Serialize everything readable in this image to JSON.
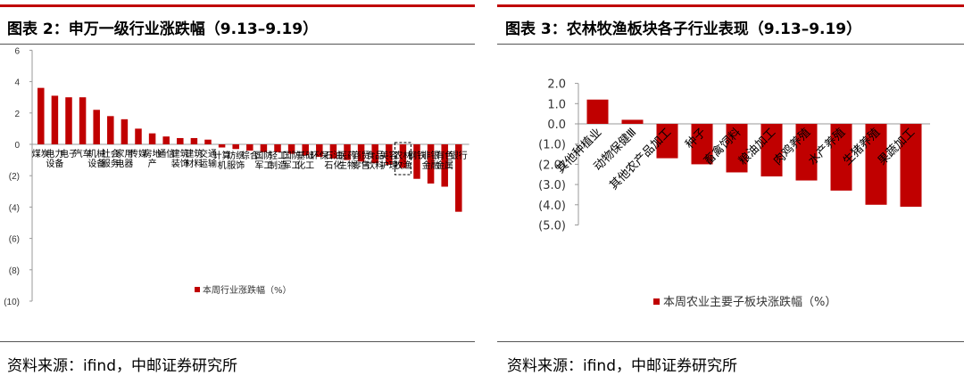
{
  "left_panel": {
    "title": "图表 2：申万一级行业涨跌幅（9.13–9.19）",
    "source": "资料来源：ifind，中邮证券研究所"
  },
  "right_panel": {
    "title": "图表 3：农林牧渔板块各子行业表现（9.13–9.19）",
    "source": "资料来源：ifind，中邮证券研究所"
  },
  "colors": {
    "bar": "#c00000",
    "border": "#8b0000",
    "axis": "#999999",
    "text": "#000000"
  },
  "chart_data": [
    {
      "type": "bar",
      "title": "",
      "ylim": [
        -10,
        6
      ],
      "y_ticks": [
        "6",
        "4",
        "2",
        "0",
        "(2)",
        "(4)",
        "(6)",
        "(8)",
        "(10)"
      ],
      "legend": "本周行业涨跌幅（%）",
      "legend_position": "bottom",
      "highlight_category": "农林牧渔",
      "categories": [
        "煤炭",
        "电力设备",
        "电子",
        "汽车",
        "机械设备",
        "社会服务",
        "家用电器",
        "传媒",
        "房地产",
        "通信",
        "建筑装饰",
        "建筑材料",
        "交通运输",
        "计算机",
        "纺织服饰",
        "综合",
        "国防军工",
        "轻工制造",
        "国防军工",
        "基础化工",
        "环保",
        "石油石化",
        "医药生物",
        "商贸零售",
        "食品饮料",
        "美容护理",
        "农林牧渔",
        "钢铁",
        "非银金融",
        "有色金属",
        "银行"
      ],
      "values": [
        3.6,
        3.1,
        3.0,
        3.0,
        2.2,
        1.8,
        1.6,
        1.0,
        0.7,
        0.5,
        0.4,
        0.4,
        0.3,
        -0.2,
        -0.3,
        -0.4,
        -0.5,
        -0.5,
        -0.6,
        -0.7,
        -0.8,
        -0.9,
        -1.0,
        -1.1,
        -1.2,
        -1.3,
        -1.5,
        -2.2,
        -2.5,
        -2.7,
        -4.3
      ]
    },
    {
      "type": "bar",
      "title": "",
      "ylim": [
        -5,
        2
      ],
      "y_ticks": [
        "2.0",
        "1.0",
        "0.0",
        "(1.0)",
        "(2.0)",
        "(3.0)",
        "(4.0)",
        "(5.0)"
      ],
      "legend": "本周农业主要子板块涨跌幅（%）",
      "legend_position": "bottom",
      "categories": [
        "其他种植业",
        "动物保健Ⅲ",
        "其他农产品加工",
        "种子",
        "畜禽饲料",
        "粮油加工",
        "肉鸡养殖",
        "水产养殖",
        "生猪养殖",
        "果蔬加工"
      ],
      "values": [
        1.2,
        0.2,
        -1.7,
        -2.0,
        -2.4,
        -2.6,
        -2.8,
        -3.3,
        -4.0,
        -4.1
      ]
    }
  ]
}
